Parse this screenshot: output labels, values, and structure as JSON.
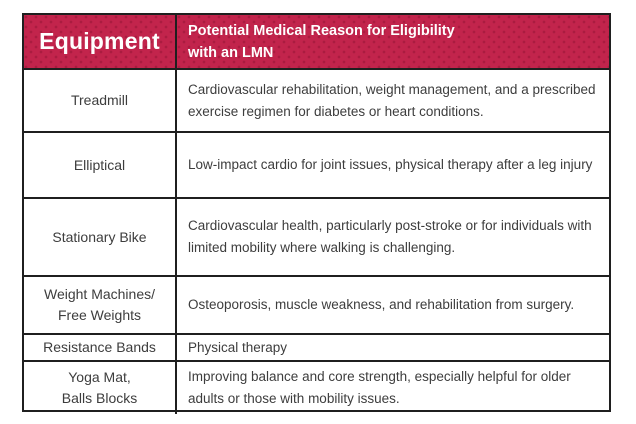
{
  "colors": {
    "header_background": "#c2244c",
    "header_dot": "#aa1c40",
    "header_text": "#ffffff",
    "border": "#1f1f1f",
    "body_text": "#3d3d3d",
    "page_background": "#ffffff"
  },
  "table": {
    "header": {
      "equipment_label": "Equipment",
      "reason_label_line1": "Potential Medical Reason for Eligibility",
      "reason_label_line2": "with an LMN"
    },
    "rows": [
      {
        "equipment_line1": "Treadmill",
        "equipment_line2": "",
        "reason": "Cardiovascular rehabilitation, weight management, and a prescribed exercise regimen for diabetes or heart conditions."
      },
      {
        "equipment_line1": "Elliptical",
        "equipment_line2": "",
        "reason": "Low-impact cardio for joint issues, physical therapy after a leg injury"
      },
      {
        "equipment_line1": "Stationary Bike",
        "equipment_line2": "",
        "reason": "Cardiovascular health, particularly post-stroke or for individuals with limited mobility where walking is challenging."
      },
      {
        "equipment_line1": "Weight Machines/",
        "equipment_line2": "Free Weights",
        "reason": "Osteoporosis, muscle weakness, and rehabilitation from surgery."
      },
      {
        "equipment_line1": "Resistance Bands",
        "equipment_line2": "",
        "reason": "Physical therapy"
      },
      {
        "equipment_line1": "Yoga Mat,",
        "equipment_line2": "Balls Blocks",
        "reason": "Improving balance and core strength, especially helpful for older adults or those with mobility issues."
      }
    ]
  }
}
